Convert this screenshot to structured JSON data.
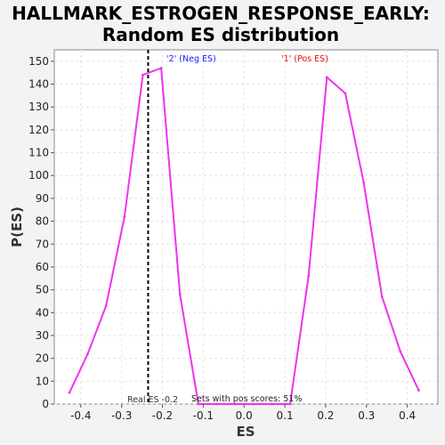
{
  "chart_data": {
    "type": "line",
    "title": "HALLMARK_ESTROGEN_RESPONSE_EARLY:",
    "subtitle": "Random ES distribution",
    "xlabel": "ES",
    "ylabel": "P(ES)",
    "xlim": [
      -0.465,
      0.475
    ],
    "ylim": [
      0,
      155
    ],
    "x_ticks": [
      -0.4,
      -0.3,
      -0.2,
      -0.1,
      0.0,
      0.1,
      0.2,
      0.3,
      0.4
    ],
    "x_tick_labels": [
      "-0.4",
      "-0.3",
      "-0.2",
      "-0.1",
      "0.0",
      "0.1",
      "0.2",
      "0.3",
      "0.4"
    ],
    "y_ticks": [
      0,
      10,
      20,
      30,
      40,
      50,
      60,
      70,
      80,
      90,
      100,
      110,
      120,
      130,
      140,
      150
    ],
    "y_tick_labels": [
      "0",
      "10",
      "20",
      "30",
      "40",
      "50",
      "60",
      "70",
      "80",
      "90",
      "100",
      "110",
      "120",
      "130",
      "140",
      "150"
    ],
    "grid": true,
    "series": [
      {
        "color": "#ee33ee",
        "x": [
          -0.428,
          -0.383,
          -0.338,
          -0.293,
          -0.248,
          -0.203,
          -0.157,
          -0.112,
          -0.067,
          -0.022,
          0.023,
          0.068,
          0.113,
          0.158,
          0.203,
          0.248,
          0.293,
          0.338,
          0.383,
          0.428
        ],
        "y": [
          5,
          22,
          43,
          82,
          144,
          147,
          48,
          0,
          0,
          0,
          0,
          0,
          0,
          56,
          143,
          136,
          97,
          47,
          23,
          6
        ]
      }
    ],
    "reference_line": {
      "x": -0.235,
      "color": "#000000",
      "style": "dashed"
    },
    "annotations": [
      {
        "text": "'2' (Neg ES)",
        "color": "#1a1aff"
      },
      {
        "text": "'1' (Pos ES)",
        "color": "#dd1111"
      },
      {
        "text": "Real ES -0.2",
        "color": "#333333"
      },
      {
        "text": "Sets with pos scores: 51%",
        "color": "#222222"
      }
    ]
  }
}
